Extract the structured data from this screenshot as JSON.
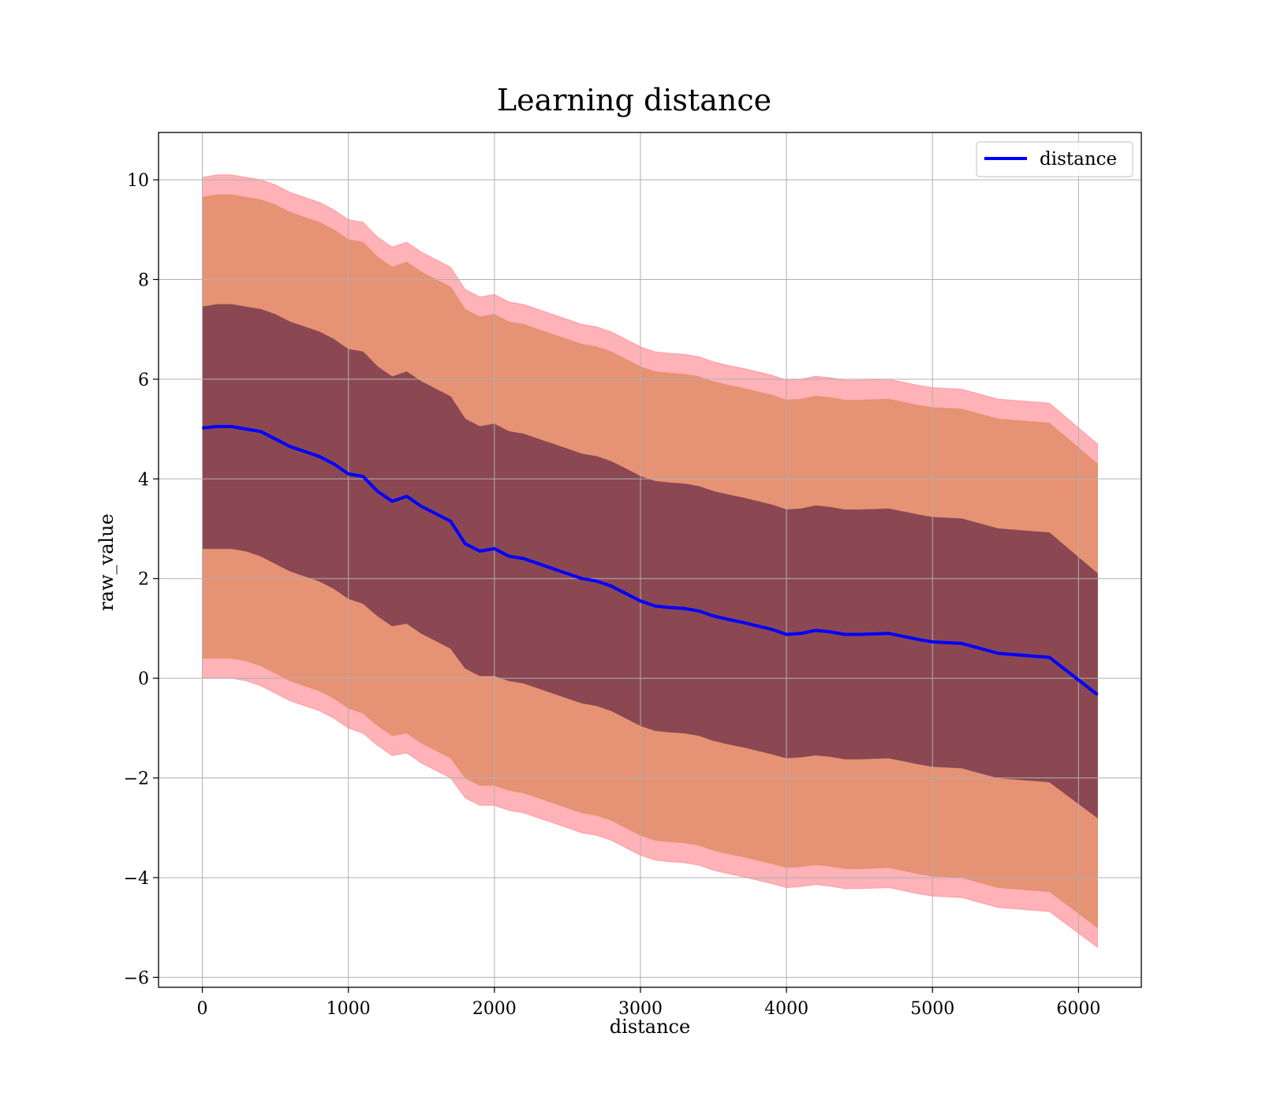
{
  "chart_data": {
    "type": "line",
    "title": "Learning distance",
    "xlabel": "distance",
    "ylabel": "raw_value",
    "xlim": [
      -300,
      6430
    ],
    "ylim": [
      -6.2,
      10.95
    ],
    "xticks": [
      0,
      1000,
      2000,
      3000,
      4000,
      5000,
      6000
    ],
    "xtick_labels": [
      "0",
      "1000",
      "2000",
      "3000",
      "4000",
      "5000",
      "6000"
    ],
    "yticks": [
      -6,
      -4,
      -2,
      0,
      2,
      4,
      6,
      8,
      10
    ],
    "ytick_labels": [
      "−6",
      "−4",
      "−2",
      "0",
      "2",
      "4",
      "6",
      "8",
      "10"
    ],
    "grid": true,
    "legend": {
      "position": "top-right",
      "entries": [
        "distance"
      ]
    },
    "colors": {
      "line": "#0000ff",
      "band_1": "#7a3b4d",
      "band_2": "#e08a63",
      "band_3": "#ff7f87"
    },
    "x": [
      0,
      100,
      200,
      300,
      400,
      500,
      600,
      700,
      800,
      900,
      1000,
      1100,
      1200,
      1300,
      1400,
      1500,
      1600,
      1700,
      1800,
      1900,
      2000,
      2100,
      2200,
      2300,
      2400,
      2500,
      2600,
      2700,
      2800,
      2900,
      3000,
      3100,
      3200,
      3300,
      3400,
      3500,
      3600,
      3700,
      3800,
      3900,
      4000,
      4100,
      4200,
      4300,
      4400,
      4500,
      4700,
      4900,
      5000,
      5200,
      5450,
      5800,
      6130
    ],
    "series": [
      {
        "name": "distance",
        "values": [
          5.02,
          5.05,
          5.05,
          5.0,
          4.95,
          4.8,
          4.65,
          4.55,
          4.45,
          4.3,
          4.1,
          4.05,
          3.75,
          3.55,
          3.65,
          3.45,
          3.3,
          3.15,
          2.7,
          2.55,
          2.6,
          2.45,
          2.4,
          2.3,
          2.2,
          2.1,
          2.0,
          1.95,
          1.85,
          1.7,
          1.55,
          1.45,
          1.42,
          1.4,
          1.35,
          1.25,
          1.18,
          1.12,
          1.05,
          0.98,
          0.88,
          0.9,
          0.96,
          0.93,
          0.88,
          0.88,
          0.9,
          0.78,
          0.73,
          0.7,
          0.5,
          0.42,
          -0.33
        ]
      }
    ],
    "bands": [
      {
        "lower": [
          2.6,
          2.6,
          2.6,
          2.55,
          2.45,
          2.3,
          2.15,
          2.05,
          1.95,
          1.8,
          1.6,
          1.5,
          1.25,
          1.05,
          1.1,
          0.9,
          0.75,
          0.6,
          0.2,
          0.05,
          0.05,
          -0.05,
          -0.1,
          -0.2,
          -0.3,
          -0.4,
          -0.5,
          -0.55,
          -0.65,
          -0.8,
          -0.95,
          -1.05,
          -1.08,
          -1.1,
          -1.15,
          -1.25,
          -1.32,
          -1.38,
          -1.45,
          -1.52,
          -1.6,
          -1.58,
          -1.54,
          -1.57,
          -1.62,
          -1.62,
          -1.6,
          -1.72,
          -1.77,
          -1.8,
          -2.0,
          -2.08,
          -2.8
        ],
        "upper": [
          7.45,
          7.5,
          7.5,
          7.45,
          7.4,
          7.3,
          7.15,
          7.05,
          6.95,
          6.8,
          6.6,
          6.55,
          6.25,
          6.05,
          6.15,
          5.95,
          5.8,
          5.65,
          5.2,
          5.05,
          5.1,
          4.95,
          4.9,
          4.8,
          4.7,
          4.6,
          4.5,
          4.45,
          4.35,
          4.2,
          4.05,
          3.95,
          3.92,
          3.9,
          3.85,
          3.75,
          3.68,
          3.62,
          3.55,
          3.48,
          3.38,
          3.4,
          3.46,
          3.43,
          3.38,
          3.38,
          3.4,
          3.28,
          3.23,
          3.2,
          3.0,
          2.92,
          2.1
        ]
      },
      {
        "lower": [
          0.4,
          0.4,
          0.4,
          0.35,
          0.25,
          0.1,
          -0.05,
          -0.15,
          -0.25,
          -0.4,
          -0.6,
          -0.7,
          -0.95,
          -1.15,
          -1.1,
          -1.3,
          -1.45,
          -1.6,
          -2.0,
          -2.15,
          -2.15,
          -2.25,
          -2.3,
          -2.4,
          -2.5,
          -2.6,
          -2.7,
          -2.75,
          -2.85,
          -3.0,
          -3.15,
          -3.25,
          -3.28,
          -3.3,
          -3.35,
          -3.45,
          -3.52,
          -3.58,
          -3.65,
          -3.72,
          -3.8,
          -3.78,
          -3.74,
          -3.77,
          -3.82,
          -3.82,
          -3.8,
          -3.92,
          -3.97,
          -4.0,
          -4.2,
          -4.28,
          -5.0
        ],
        "upper": [
          9.65,
          9.7,
          9.7,
          9.65,
          9.6,
          9.5,
          9.35,
          9.25,
          9.15,
          9.0,
          8.8,
          8.75,
          8.45,
          8.25,
          8.35,
          8.15,
          8.0,
          7.85,
          7.4,
          7.25,
          7.3,
          7.15,
          7.1,
          7.0,
          6.9,
          6.8,
          6.7,
          6.65,
          6.55,
          6.4,
          6.25,
          6.15,
          6.12,
          6.1,
          6.05,
          5.95,
          5.88,
          5.82,
          5.75,
          5.68,
          5.58,
          5.6,
          5.66,
          5.63,
          5.58,
          5.58,
          5.6,
          5.48,
          5.43,
          5.4,
          5.2,
          5.12,
          4.3
        ]
      },
      {
        "lower": [
          0.0,
          0.0,
          0.0,
          -0.05,
          -0.15,
          -0.3,
          -0.45,
          -0.55,
          -0.65,
          -0.8,
          -1.0,
          -1.1,
          -1.35,
          -1.55,
          -1.5,
          -1.7,
          -1.85,
          -2.0,
          -2.4,
          -2.55,
          -2.55,
          -2.65,
          -2.7,
          -2.8,
          -2.9,
          -3.0,
          -3.1,
          -3.15,
          -3.25,
          -3.4,
          -3.55,
          -3.65,
          -3.68,
          -3.7,
          -3.75,
          -3.85,
          -3.92,
          -3.98,
          -4.05,
          -4.12,
          -4.2,
          -4.18,
          -4.14,
          -4.17,
          -4.22,
          -4.22,
          -4.2,
          -4.32,
          -4.37,
          -4.4,
          -4.6,
          -4.68,
          -5.4
        ],
        "upper": [
          10.05,
          10.1,
          10.1,
          10.05,
          10.0,
          9.9,
          9.75,
          9.65,
          9.55,
          9.4,
          9.2,
          9.15,
          8.85,
          8.65,
          8.75,
          8.55,
          8.4,
          8.25,
          7.8,
          7.65,
          7.7,
          7.55,
          7.5,
          7.4,
          7.3,
          7.2,
          7.1,
          7.05,
          6.95,
          6.8,
          6.65,
          6.55,
          6.52,
          6.5,
          6.45,
          6.35,
          6.28,
          6.22,
          6.15,
          6.08,
          5.98,
          6.0,
          6.06,
          6.03,
          5.98,
          5.98,
          6.0,
          5.88,
          5.83,
          5.8,
          5.6,
          5.52,
          4.7
        ]
      }
    ]
  }
}
